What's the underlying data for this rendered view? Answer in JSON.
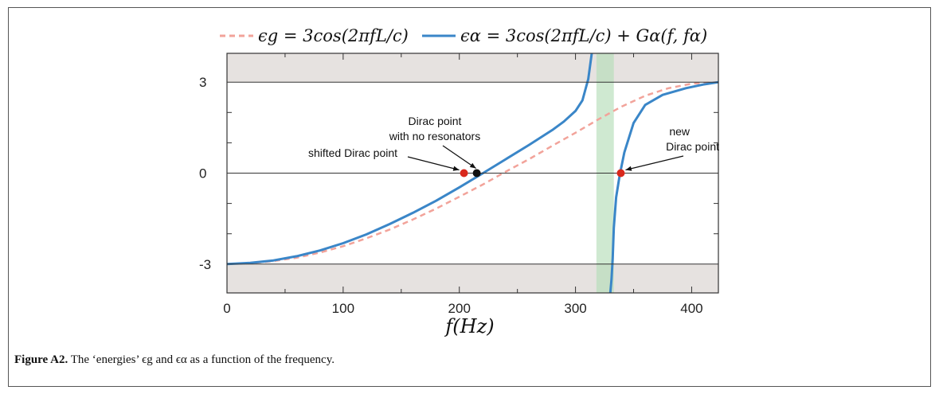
{
  "caption": {
    "label": "Figure A2.",
    "text": "The ‘energies’ ϵg and ϵα as a function of the frequency."
  },
  "chart_data": {
    "type": "line",
    "xlabel": "f(Hz)",
    "ylabel": "",
    "xlim": [
      0,
      423
    ],
    "ylim": [
      -3.95,
      3.95
    ],
    "x_ticks": [
      0,
      100,
      200,
      300,
      400
    ],
    "y_ticks": [
      -3,
      0,
      3
    ],
    "y_tick_labels": [
      "-3",
      "0",
      "3"
    ],
    "band_limits": [
      -3,
      3
    ],
    "gap_region": [
      318,
      333
    ],
    "series": [
      {
        "name": "ϵg = 3cos(2πfL/c)",
        "style": "dashed",
        "color": "#f2a39a",
        "x": [
          0,
          20,
          40,
          60,
          80,
          100,
          120,
          140,
          160,
          180,
          200,
          220,
          240,
          260,
          280,
          300,
          320,
          340,
          360,
          380,
          400,
          423
        ],
        "y": [
          -3.0,
          -2.97,
          -2.9,
          -2.79,
          -2.62,
          -2.41,
          -2.15,
          -1.86,
          -1.53,
          -1.17,
          -0.78,
          -0.38,
          0.05,
          0.46,
          0.9,
          1.33,
          1.78,
          2.2,
          2.55,
          2.8,
          2.95,
          3.0
        ]
      },
      {
        "name": "ϵα = 3cos(2πfL/c) + Gα(f, fα)",
        "style": "solid",
        "color": "#3a86c8",
        "x": [
          0,
          20,
          40,
          60,
          80,
          100,
          120,
          140,
          160,
          180,
          200,
          220,
          240,
          260,
          280,
          290,
          300,
          306,
          311,
          314
        ],
        "y": [
          -3.0,
          -2.96,
          -2.88,
          -2.74,
          -2.55,
          -2.31,
          -2.02,
          -1.68,
          -1.31,
          -0.91,
          -0.47,
          -0.01,
          0.46,
          0.93,
          1.42,
          1.7,
          2.05,
          2.4,
          3.1,
          3.95
        ]
      },
      {
        "name": "ϵα upper branch",
        "style": "solid",
        "color": "#3a86c8",
        "x": [
          330,
          331,
          332,
          333,
          335,
          338,
          342,
          350,
          360,
          375,
          395,
          410,
          423
        ],
        "y": [
          -3.95,
          -3.5,
          -2.8,
          -1.8,
          -0.8,
          -0.08,
          0.68,
          1.65,
          2.25,
          2.58,
          2.8,
          2.92,
          3.0
        ]
      }
    ],
    "points": [
      {
        "x": 204,
        "y": 0,
        "color": "#d9281c"
      },
      {
        "x": 215,
        "y": 0,
        "color": "#111111"
      },
      {
        "x": 339,
        "y": 0,
        "color": "#d9281c"
      }
    ],
    "annotations": [
      {
        "text": "shifted Dirac point",
        "x": 204,
        "y": 0
      },
      {
        "text": "Dirac point",
        "x": 215,
        "y": 0
      },
      {
        "text": "with no resonators",
        "x": 215,
        "y": 0
      },
      {
        "text": "new",
        "x": 339,
        "y": 0
      },
      {
        "text": "Dirac point",
        "x": 339,
        "y": 0
      }
    ]
  },
  "legend": {
    "g_text": "ϵg = 3 cos(2πfL/c)",
    "a_text": "ϵα = 3 cos(2πfL/c) + Gα(f, fα)"
  }
}
